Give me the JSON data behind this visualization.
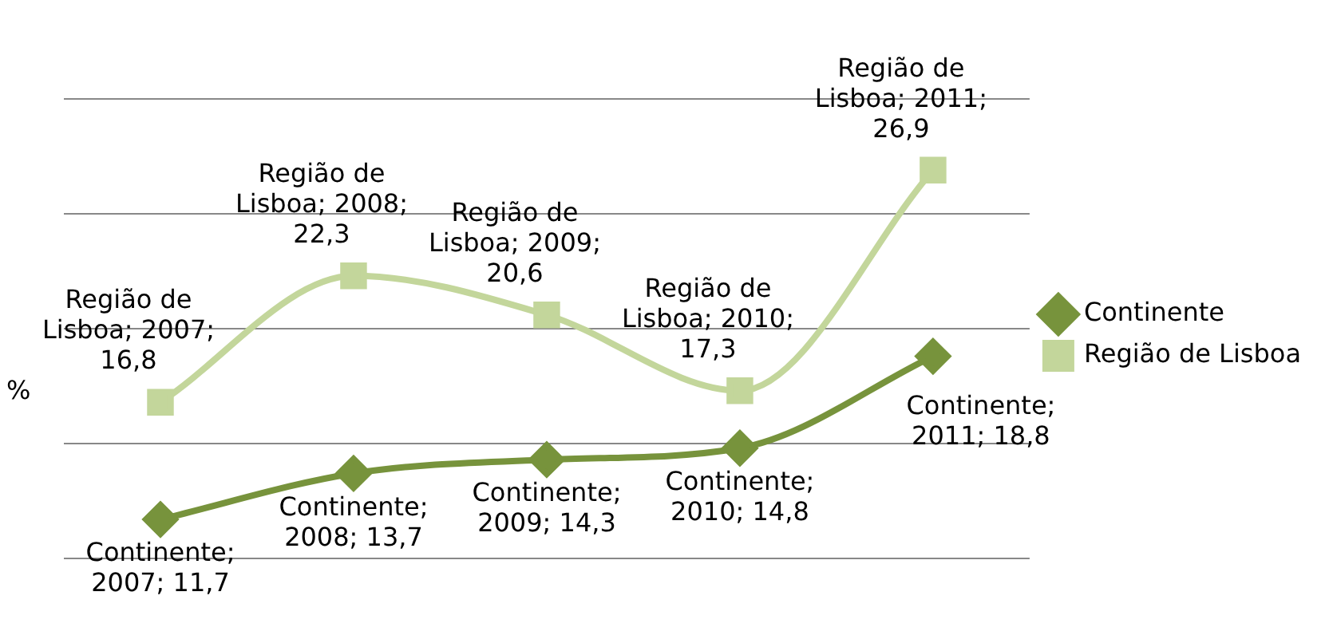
{
  "chart_data": {
    "type": "line",
    "ylabel": "%",
    "categories": [
      null,
      null,
      null,
      null,
      null
    ],
    "series": [
      {
        "name": "Continente",
        "color": "#77933c",
        "marker": "diamond",
        "values": [
          11.7,
          13.7,
          14.3,
          14.8,
          18.8
        ],
        "value_labels": [
          "Continente; 2007; 11,7",
          "Continente; 2008; 13,7",
          "Continente; 2009; 14,3",
          "Continente; 2010; 14,8",
          "Continente; 2011; 18,8"
        ]
      },
      {
        "name": "Região de Lisboa",
        "color": "#c3d69b",
        "marker": "square",
        "values": [
          16.8,
          22.3,
          20.6,
          17.3,
          26.9
        ],
        "value_labels": [
          "Região de Lisboa; 2007; 16,8",
          "Região de Lisboa; 2008; 22,3",
          "Região de Lisboa; 2009; 20,6",
          "Região de Lisboa; 2010; 17,3",
          "Região de Lisboa; 2011; 26,9"
        ]
      }
    ],
    "ylim": [
      10,
      30
    ],
    "yticks": [
      10,
      15,
      20,
      25,
      30
    ],
    "tick_labels": false,
    "grid": "y",
    "legend": "right"
  }
}
